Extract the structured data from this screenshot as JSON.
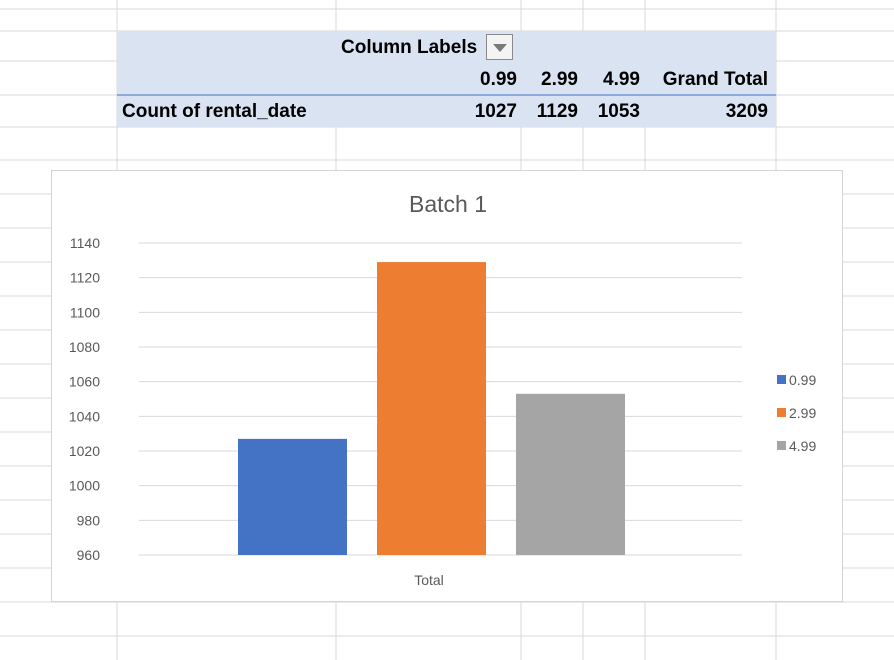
{
  "pivot": {
    "column_labels": "Column Labels",
    "headers": [
      "0.99",
      "2.99",
      "4.99",
      "Grand Total"
    ],
    "row_label": "Count of rental_date",
    "values": [
      "1027",
      "1129",
      "1053",
      "3209"
    ]
  },
  "chart_data": {
    "type": "bar",
    "title": "Batch 1",
    "categories": [
      "Total"
    ],
    "series": [
      {
        "name": "0.99",
        "values": [
          1027
        ],
        "color": "#4472c4"
      },
      {
        "name": "2.99",
        "values": [
          1129
        ],
        "color": "#ed7d31"
      },
      {
        "name": "4.99",
        "values": [
          1053
        ],
        "color": "#a5a5a5"
      }
    ],
    "ylim": [
      960,
      1140
    ],
    "yticks": [
      960,
      980,
      1000,
      1020,
      1040,
      1060,
      1080,
      1100,
      1120,
      1140
    ],
    "grid": true,
    "legend": "right"
  }
}
